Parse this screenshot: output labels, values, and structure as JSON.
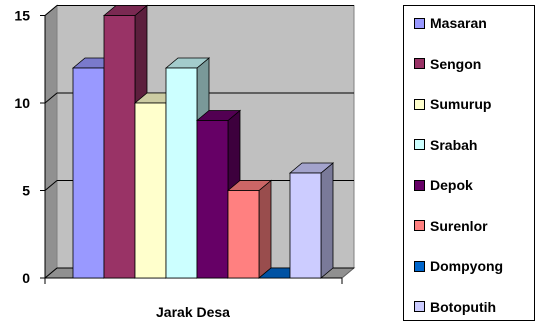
{
  "chart_data": {
    "type": "bar",
    "style": "3d-clustered",
    "categories": [
      "Jarak Desa"
    ],
    "xlabel": "Jarak Desa",
    "ylim": [
      0,
      15
    ],
    "yticks": [
      0,
      5,
      10,
      15
    ],
    "grid": true,
    "legend_position": "right",
    "series": [
      {
        "name": "Masaran",
        "values": [
          12
        ],
        "color": "#9999ff"
      },
      {
        "name": "Sengon",
        "values": [
          15
        ],
        "color": "#993366"
      },
      {
        "name": "Sumurup",
        "values": [
          10
        ],
        "color": "#ffffcc"
      },
      {
        "name": "Srabah",
        "values": [
          12
        ],
        "color": "#ccffff"
      },
      {
        "name": "Depok",
        "values": [
          9
        ],
        "color": "#660066"
      },
      {
        "name": "Surenlor",
        "values": [
          5
        ],
        "color": "#ff8080"
      },
      {
        "name": "Dompyong",
        "values": [
          0
        ],
        "color": "#0066cc"
      },
      {
        "name": "Botoputih",
        "values": [
          6
        ],
        "color": "#ccccff"
      }
    ]
  }
}
